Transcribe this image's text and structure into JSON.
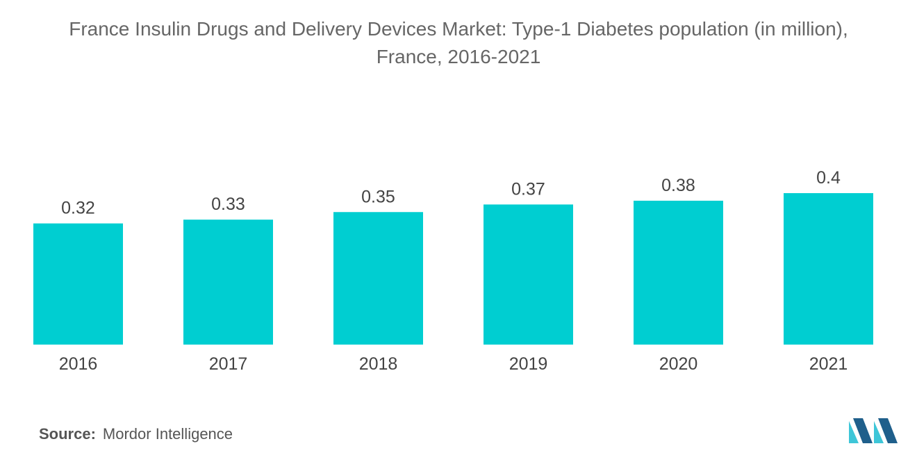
{
  "title_line1": "France Insulin Drugs and Delivery Devices Market: Type-1 Diabetes population (in million),",
  "title_line2": "France, 2016-2021",
  "source_label": "Source:",
  "source_value": "Mordor Intelligence",
  "logo_icon": "mordor-intelligence-logo-icon",
  "colors": {
    "bar": "#00CED1",
    "text": "#444444",
    "logo_dark": "#1f5f8b",
    "logo_light": "#3ec6d8"
  },
  "chart_data": {
    "type": "bar",
    "title": "France Insulin Drugs and Delivery Devices Market: Type-1 Diabetes population (in million), France, 2016-2021",
    "categories": [
      "2016",
      "2017",
      "2018",
      "2019",
      "2020",
      "2021"
    ],
    "values": [
      0.32,
      0.33,
      0.35,
      0.37,
      0.38,
      0.4
    ],
    "value_labels": [
      "0.32",
      "0.33",
      "0.35",
      "0.37",
      "0.38",
      "0.4"
    ],
    "xlabel": "",
    "ylabel": "",
    "ylim": [
      0,
      0.4
    ],
    "grid": false,
    "legend": "none"
  }
}
